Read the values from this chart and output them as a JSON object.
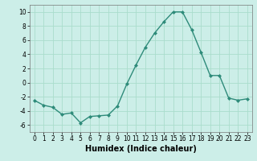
{
  "x": [
    0,
    1,
    2,
    3,
    4,
    5,
    6,
    7,
    8,
    9,
    10,
    11,
    12,
    13,
    14,
    15,
    16,
    17,
    18,
    19,
    20,
    21,
    22,
    23
  ],
  "y": [
    -2.5,
    -3.2,
    -3.5,
    -4.5,
    -4.3,
    -5.7,
    -4.8,
    -4.7,
    -4.6,
    -3.3,
    -0.2,
    2.5,
    5.0,
    7.0,
    8.6,
    10.0,
    10.0,
    7.5,
    4.3,
    1.0,
    1.0,
    -2.2,
    -2.5,
    -2.3
  ],
  "line_color": "#2e8b7a",
  "marker": "D",
  "marker_size": 2.0,
  "line_width": 1.0,
  "bg_color": "#cceee8",
  "grid_color": "#aaddcc",
  "xlabel": "Humidex (Indice chaleur)",
  "xlim": [
    -0.5,
    23.5
  ],
  "ylim": [
    -7,
    11
  ],
  "yticks": [
    -6,
    -4,
    -2,
    0,
    2,
    4,
    6,
    8,
    10
  ],
  "xticks": [
    0,
    1,
    2,
    3,
    4,
    5,
    6,
    7,
    8,
    9,
    10,
    11,
    12,
    13,
    14,
    15,
    16,
    17,
    18,
    19,
    20,
    21,
    22,
    23
  ],
  "tick_label_fontsize": 5.5,
  "xlabel_fontsize": 7.0
}
